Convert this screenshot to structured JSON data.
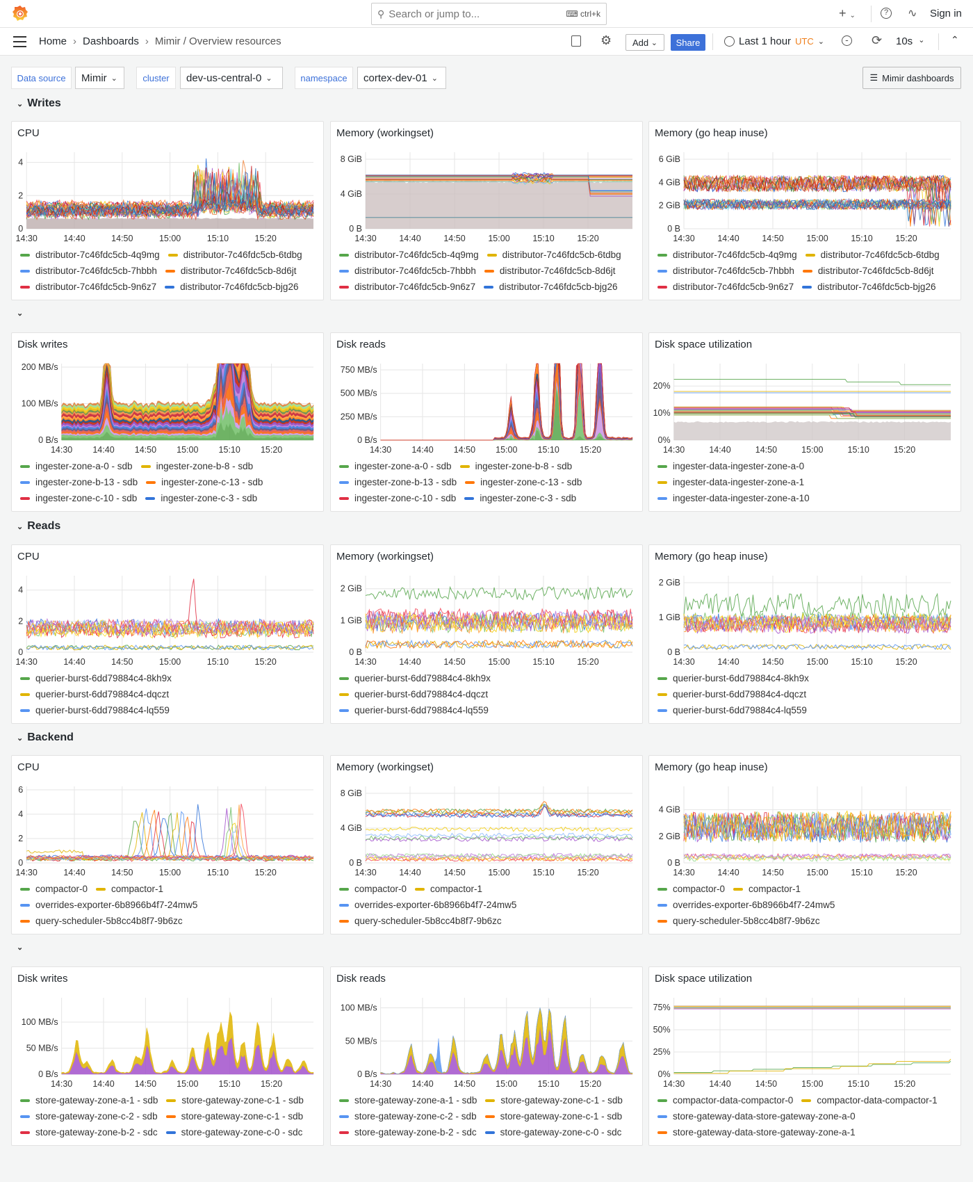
{
  "topbar": {
    "search_placeholder": "Search or jump to...",
    "search_shortcut": "ctrl+k",
    "sign_in": "Sign in"
  },
  "nav": {
    "breadcrumb": [
      "Home",
      "Dashboards",
      "Mimir / Overview resources"
    ],
    "add_label": "Add",
    "share_label": "Share",
    "time_range": "Last 1 hour",
    "timezone": "UTC",
    "refresh_interval": "10s"
  },
  "variables": [
    {
      "label": "Data source",
      "value": "Mimir"
    },
    {
      "label": "cluster",
      "value": "dev-us-central-0"
    },
    {
      "label": "namespace",
      "value": "cortex-dev-01"
    }
  ],
  "dashboards_link": "Mimir dashboards",
  "sections": {
    "writes": "Writes",
    "reads": "Reads",
    "backend": "Backend"
  },
  "colors": {
    "accent": "#3d71d9",
    "utc": "#ef7e1a",
    "green": "#56a64b",
    "yellow": "#e0b400",
    "blue": "#5794f2",
    "orange": "#ff780a",
    "red": "#e02f44",
    "darkblue": "#3274d9",
    "purple": "#a352cc"
  },
  "x_ticks": [
    "14:30",
    "14:40",
    "14:50",
    "15:00",
    "15:10",
    "15:20"
  ],
  "panels": [
    {
      "title": "CPU",
      "y_ticks": [
        "0",
        "2",
        "4"
      ],
      "y_max": 4.4,
      "legend": [
        [
          [
            "distributor-7c46fdc5cb-4q9mg",
            "green"
          ],
          [
            "distributor-7c46fdc5cb-6tdbg",
            "yellow"
          ]
        ],
        [
          [
            "distributor-7c46fdc5cb-7hbbh",
            "blue"
          ],
          [
            "distributor-7c46fdc5cb-8d6jt",
            "orange"
          ]
        ],
        [
          [
            "distributor-7c46fdc5cb-9n6z7",
            "red"
          ],
          [
            "distributor-7c46fdc5cb-bjg26",
            "darkblue"
          ]
        ]
      ]
    },
    {
      "title": "Memory (workingset)",
      "y_ticks": [
        "0 B",
        "4 GiB",
        "8 GiB"
      ],
      "y_max": 8.4,
      "legend": [
        [
          [
            "distributor-7c46fdc5cb-4q9mg",
            "green"
          ],
          [
            "distributor-7c46fdc5cb-6tdbg",
            "yellow"
          ]
        ],
        [
          [
            "distributor-7c46fdc5cb-7hbbh",
            "blue"
          ],
          [
            "distributor-7c46fdc5cb-8d6jt",
            "orange"
          ]
        ],
        [
          [
            "distributor-7c46fdc5cb-9n6z7",
            "red"
          ],
          [
            "distributor-7c46fdc5cb-bjg26",
            "darkblue"
          ]
        ]
      ]
    },
    {
      "title": "Memory (go heap inuse)",
      "y_ticks": [
        "0 B",
        "2 GiB",
        "4 GiB",
        "6 GiB"
      ],
      "y_max": 6.3,
      "legend": [
        [
          [
            "distributor-7c46fdc5cb-4q9mg",
            "green"
          ],
          [
            "distributor-7c46fdc5cb-6tdbg",
            "yellow"
          ]
        ],
        [
          [
            "distributor-7c46fdc5cb-7hbbh",
            "blue"
          ],
          [
            "distributor-7c46fdc5cb-8d6jt",
            "orange"
          ]
        ],
        [
          [
            "distributor-7c46fdc5cb-9n6z7",
            "red"
          ],
          [
            "distributor-7c46fdc5cb-bjg26",
            "darkblue"
          ]
        ]
      ]
    },
    {
      "title": "Disk writes",
      "y_ticks": [
        "0 B/s",
        "100 MB/s",
        "200 MB/s"
      ],
      "y_max": 200,
      "legend": [
        [
          [
            "ingester-zone-a-0 - sdb",
            "green"
          ],
          [
            "ingester-zone-b-8 - sdb",
            "yellow"
          ]
        ],
        [
          [
            "ingester-zone-b-13 - sdb",
            "blue"
          ],
          [
            "ingester-zone-c-13 - sdb",
            "orange"
          ]
        ],
        [
          [
            "ingester-zone-c-10 - sdb",
            "red"
          ],
          [
            "ingester-zone-c-3 - sdb",
            "darkblue"
          ]
        ]
      ]
    },
    {
      "title": "Disk reads",
      "y_ticks": [
        "0 B/s",
        "250 MB/s",
        "500 MB/s",
        "750 MB/s"
      ],
      "y_max": 780,
      "legend": [
        [
          [
            "ingester-zone-a-0 - sdb",
            "green"
          ],
          [
            "ingester-zone-b-8 - sdb",
            "yellow"
          ]
        ],
        [
          [
            "ingester-zone-b-13 - sdb",
            "blue"
          ],
          [
            "ingester-zone-c-13 - sdb",
            "orange"
          ]
        ],
        [
          [
            "ingester-zone-c-10 - sdb",
            "red"
          ],
          [
            "ingester-zone-c-3 - sdb",
            "darkblue"
          ]
        ]
      ]
    },
    {
      "title": "Disk space utilization",
      "y_ticks": [
        "0%",
        "10%",
        "20%"
      ],
      "y_max": 27,
      "legend": [
        [
          [
            "ingester-data-ingester-zone-a-0",
            "green"
          ]
        ],
        [
          [
            "ingester-data-ingester-zone-a-1",
            "yellow"
          ]
        ],
        [
          [
            "ingester-data-ingester-zone-a-10",
            "blue"
          ]
        ]
      ]
    },
    {
      "title": "CPU",
      "y_ticks": [
        "0",
        "2",
        "4"
      ],
      "y_max": 4.7,
      "legend": [
        [
          [
            "querier-burst-6dd79884c4-8kh9x",
            "green"
          ]
        ],
        [
          [
            "querier-burst-6dd79884c4-dqczt",
            "yellow"
          ]
        ],
        [
          [
            "querier-burst-6dd79884c4-lq559",
            "blue"
          ]
        ]
      ]
    },
    {
      "title": "Memory (workingset)",
      "y_ticks": [
        "0 B",
        "1 GiB",
        "2 GiB"
      ],
      "y_max": 2.3,
      "legend": [
        [
          [
            "querier-burst-6dd79884c4-8kh9x",
            "green"
          ]
        ],
        [
          [
            "querier-burst-6dd79884c4-dqczt",
            "yellow"
          ]
        ],
        [
          [
            "querier-burst-6dd79884c4-lq559",
            "blue"
          ]
        ]
      ]
    },
    {
      "title": "Memory (go heap inuse)",
      "y_ticks": [
        "0 B",
        "1 GiB",
        "2 GiB"
      ],
      "y_max": 2.1,
      "legend": [
        [
          [
            "querier-burst-6dd79884c4-8kh9x",
            "green"
          ]
        ],
        [
          [
            "querier-burst-6dd79884c4-dqczt",
            "yellow"
          ]
        ],
        [
          [
            "querier-burst-6dd79884c4-lq559",
            "blue"
          ]
        ]
      ]
    },
    {
      "title": "CPU",
      "y_ticks": [
        "0",
        "2",
        "4",
        "6"
      ],
      "y_max": 6,
      "legend": [
        [
          [
            "compactor-0",
            "green"
          ],
          [
            "compactor-1",
            "yellow"
          ]
        ],
        [
          [
            "overrides-exporter-6b8966b4f7-24mw5",
            "blue"
          ]
        ],
        [
          [
            "query-scheduler-5b8cc4b8f7-9b6zc",
            "orange"
          ]
        ]
      ]
    },
    {
      "title": "Memory (workingset)",
      "y_ticks": [
        "0 B",
        "4 GiB",
        "8 GiB"
      ],
      "y_max": 8.4,
      "legend": [
        [
          [
            "compactor-0",
            "green"
          ],
          [
            "compactor-1",
            "yellow"
          ]
        ],
        [
          [
            "overrides-exporter-6b8966b4f7-24mw5",
            "blue"
          ]
        ],
        [
          [
            "query-scheduler-5b8cc4b8f7-9b6zc",
            "orange"
          ]
        ]
      ]
    },
    {
      "title": "Memory (go heap inuse)",
      "y_ticks": [
        "0 B",
        "2 GiB",
        "4 GiB"
      ],
      "y_max": 5.5,
      "legend": [
        [
          [
            "compactor-0",
            "green"
          ],
          [
            "compactor-1",
            "yellow"
          ]
        ],
        [
          [
            "overrides-exporter-6b8966b4f7-24mw5",
            "blue"
          ]
        ],
        [
          [
            "query-scheduler-5b8cc4b8f7-9b6zc",
            "orange"
          ]
        ]
      ]
    },
    {
      "title": "Disk writes",
      "y_ticks": [
        "0 B/s",
        "50 MB/s",
        "100 MB/s"
      ],
      "y_max": 140,
      "legend": [
        [
          [
            "store-gateway-zone-a-1 - sdb",
            "green"
          ],
          [
            "store-gateway-zone-c-1 - sdb",
            "yellow"
          ]
        ],
        [
          [
            "store-gateway-zone-c-2 - sdb",
            "blue"
          ],
          [
            "store-gateway-zone-c-1 - sdb",
            "orange"
          ]
        ],
        [
          [
            "store-gateway-zone-b-2 - sdc",
            "red"
          ],
          [
            "store-gateway-zone-c-0 - sdc",
            "darkblue"
          ]
        ]
      ]
    },
    {
      "title": "Disk reads",
      "y_ticks": [
        "0 B/s",
        "50 MB/s",
        "100 MB/s"
      ],
      "y_max": 110,
      "legend": [
        [
          [
            "store-gateway-zone-a-1 - sdb",
            "green"
          ],
          [
            "store-gateway-zone-c-1 - sdb",
            "yellow"
          ]
        ],
        [
          [
            "store-gateway-zone-c-2 - sdb",
            "blue"
          ],
          [
            "store-gateway-zone-c-1 - sdb",
            "orange"
          ]
        ],
        [
          [
            "store-gateway-zone-b-2 - sdc",
            "red"
          ],
          [
            "store-gateway-zone-c-0 - sdc",
            "darkblue"
          ]
        ]
      ]
    },
    {
      "title": "Disk space utilization",
      "y_ticks": [
        "0%",
        "25%",
        "50%",
        "75%"
      ],
      "y_max": 82,
      "legend": [
        [
          [
            "compactor-data-compactor-0",
            "green"
          ],
          [
            "compactor-data-compactor-1",
            "yellow"
          ]
        ],
        [
          [
            "store-gateway-data-store-gateway-zone-a-0",
            "blue"
          ]
        ],
        [
          [
            "store-gateway-data-store-gateway-zone-a-1",
            "orange"
          ]
        ]
      ]
    }
  ]
}
